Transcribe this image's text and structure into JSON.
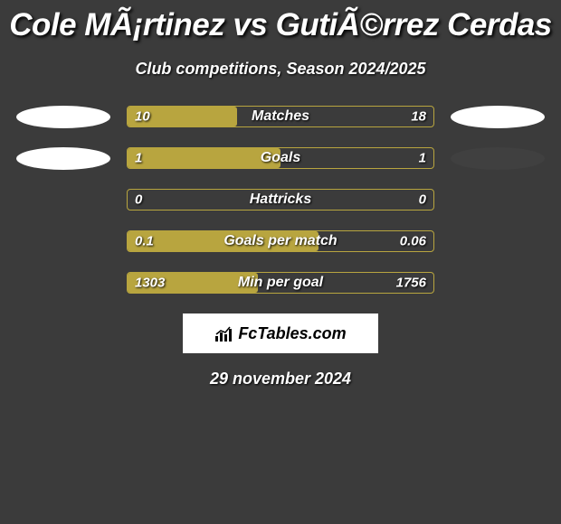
{
  "title": "Cole MÃ¡rtinez vs GutiÃ©rrez Cerdas",
  "subtitle": "Club competitions, Season 2024/2025",
  "colors": {
    "background": "#3b3b3b",
    "bar_border": "#b8a53f",
    "left_fill": "#b8a53f",
    "right_fill": "#3b3b3b",
    "left_ellipse": "#ffffff",
    "right_ellipse": "#404040",
    "text": "#ffffff",
    "text_shadow": "#000000"
  },
  "bars": [
    {
      "label": "Matches",
      "left_val": "10",
      "right_val": "18",
      "left_pct": 35.7,
      "left_ellipse": "#ffffff",
      "right_ellipse": "#ffffff"
    },
    {
      "label": "Goals",
      "left_val": "1",
      "right_val": "1",
      "left_pct": 50,
      "left_ellipse": "#ffffff",
      "right_ellipse": "#404040"
    },
    {
      "label": "Hattricks",
      "left_val": "0",
      "right_val": "0",
      "left_pct": 0,
      "left_ellipse": null,
      "right_ellipse": null
    },
    {
      "label": "Goals per match",
      "left_val": "0.1",
      "right_val": "0.06",
      "left_pct": 62.5,
      "left_ellipse": null,
      "right_ellipse": null
    },
    {
      "label": "Min per goal",
      "left_val": "1303",
      "right_val": "1756",
      "left_pct": 42.6,
      "left_ellipse": null,
      "right_ellipse": null
    }
  ],
  "logo": "FcTables.com",
  "date": "29 november 2024"
}
